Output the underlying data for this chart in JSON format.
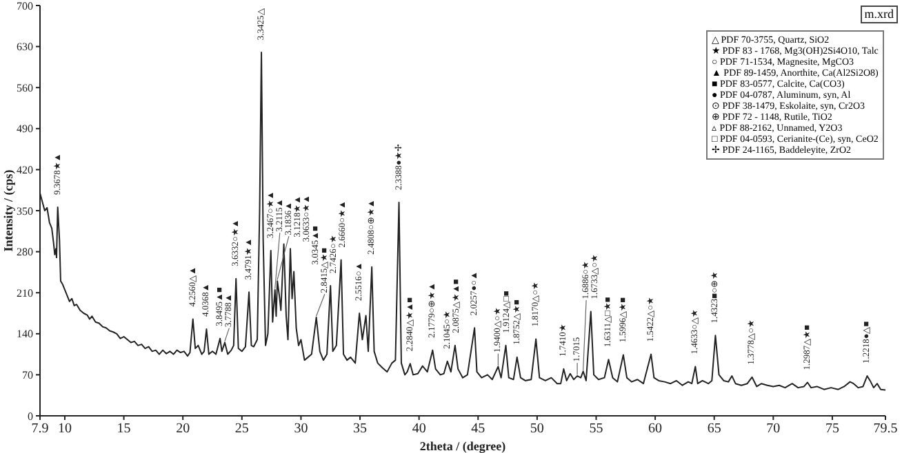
{
  "chart_data": {
    "type": "line",
    "xlabel": "2theta / (degree)",
    "ylabel": "Intensity / (cps)",
    "xlim": [
      7.9,
      79.5
    ],
    "ylim": [
      0,
      700
    ],
    "xticks": [
      7.9,
      10,
      15,
      20,
      25,
      30,
      35,
      40,
      45,
      50,
      55,
      60,
      65,
      70,
      75,
      79.5
    ],
    "yticks": [
      0,
      70,
      140,
      210,
      280,
      350,
      420,
      490,
      560,
      630,
      700
    ],
    "series": [
      {
        "color": "#222222",
        "x": [
          7.9,
          8.1,
          8.3,
          8.5,
          8.7,
          8.9,
          9.05,
          9.15,
          9.25,
          9.3,
          9.4,
          9.55,
          9.65,
          9.8,
          10.0,
          10.2,
          10.4,
          10.6,
          10.8,
          11.0,
          11.3,
          11.6,
          11.9,
          12.1,
          12.3,
          12.6,
          12.9,
          13.2,
          13.5,
          13.8,
          14.1,
          14.4,
          14.7,
          15.0,
          15.3,
          15.6,
          15.9,
          16.2,
          16.5,
          16.8,
          17.1,
          17.4,
          17.7,
          18.0,
          18.3,
          18.6,
          18.9,
          19.2,
          19.5,
          19.8,
          20.1,
          20.4,
          20.6,
          20.85,
          21.05,
          21.3,
          21.6,
          21.8,
          22.0,
          22.2,
          22.5,
          22.8,
          23.15,
          23.3,
          23.55,
          23.8,
          24.1,
          24.3,
          24.5,
          24.7,
          25.0,
          25.3,
          25.6,
          25.8,
          26.0,
          26.3,
          26.5,
          26.65,
          26.8,
          27.0,
          27.2,
          27.45,
          27.6,
          27.8,
          27.9,
          28.0,
          28.2,
          28.3,
          28.55,
          28.75,
          28.9,
          29.1,
          29.25,
          29.4,
          29.6,
          29.8,
          30.0,
          30.3,
          30.6,
          30.9,
          31.3,
          31.6,
          31.9,
          32.2,
          32.5,
          32.7,
          33.0,
          33.4,
          33.6,
          33.9,
          34.2,
          34.6,
          34.95,
          35.2,
          35.5,
          35.7,
          36.0,
          36.2,
          36.5,
          36.9,
          37.3,
          37.7,
          38.0,
          38.3,
          38.5,
          38.8,
          39.0,
          39.25,
          39.5,
          39.9,
          40.3,
          40.7,
          41.15,
          41.4,
          41.8,
          42.1,
          42.4,
          42.7,
          43.05,
          43.3,
          43.7,
          44.1,
          44.7,
          44.9,
          45.3,
          45.8,
          46.2,
          46.7,
          46.95,
          47.35,
          47.6,
          48.0,
          48.3,
          48.6,
          49.0,
          49.5,
          49.9,
          50.2,
          50.7,
          51.2,
          51.7,
          52.0,
          52.25,
          52.5,
          52.8,
          53.1,
          53.4,
          53.7,
          53.9,
          54.15,
          54.55,
          54.8,
          55.2,
          55.7,
          56.05,
          56.4,
          56.8,
          57.3,
          57.6,
          58.0,
          58.5,
          59.0,
          59.65,
          59.9,
          60.3,
          60.8,
          61.3,
          61.8,
          62.3,
          62.8,
          63.1,
          63.4,
          63.6,
          64.0,
          64.5,
          64.8,
          65.1,
          65.4,
          65.8,
          66.2,
          66.5,
          66.8,
          67.3,
          67.8,
          68.2,
          68.6,
          69.0,
          69.5,
          70.0,
          70.5,
          71.0,
          71.6,
          72.1,
          72.6,
          72.9,
          73.2,
          73.7,
          74.3,
          74.9,
          75.5,
          76.0,
          76.5,
          76.8,
          77.2,
          77.6,
          77.95,
          78.2,
          78.5,
          78.8,
          79.1,
          79.5
        ],
        "values": [
          380,
          365,
          350,
          355,
          330,
          320,
          295,
          275,
          285,
          270,
          356,
          300,
          230,
          225,
          215,
          205,
          195,
          200,
          188,
          190,
          180,
          175,
          172,
          165,
          170,
          160,
          158,
          152,
          150,
          145,
          143,
          140,
          132,
          135,
          130,
          125,
          127,
          120,
          122,
          115,
          118,
          110,
          112,
          105,
          112,
          106,
          110,
          105,
          112,
          108,
          110,
          102,
          108,
          165,
          115,
          120,
          105,
          110,
          148,
          105,
          110,
          105,
          132,
          110,
          125,
          105,
          112,
          120,
          234,
          115,
          110,
          118,
          211,
          120,
          118,
          130,
          350,
          620,
          300,
          120,
          140,
          282,
          160,
          215,
          170,
          230,
          200,
          180,
          293,
          170,
          130,
          285,
          200,
          246,
          150,
          120,
          130,
          95,
          100,
          105,
          168,
          110,
          95,
          105,
          222,
          110,
          120,
          266,
          105,
          95,
          100,
          90,
          175,
          130,
          171,
          110,
          254,
          110,
          90,
          82,
          75,
          90,
          95,
          364,
          90,
          70,
          75,
          89,
          70,
          72,
          85,
          75,
          112,
          80,
          70,
          72,
          93,
          75,
          120,
          80,
          65,
          70,
          150,
          75,
          65,
          70,
          62,
          84,
          65,
          120,
          65,
          62,
          100,
          65,
          60,
          62,
          131,
          65,
          60,
          65,
          55,
          55,
          80,
          60,
          72,
          62,
          68,
          65,
          76,
          60,
          178,
          70,
          62,
          65,
          96,
          65,
          58,
          104,
          65,
          58,
          62,
          55,
          105,
          65,
          60,
          58,
          55,
          60,
          52,
          58,
          55,
          84,
          55,
          60,
          55,
          60,
          137,
          70,
          60,
          58,
          68,
          55,
          52,
          55,
          66,
          50,
          55,
          52,
          50,
          52,
          48,
          55,
          48,
          50,
          57,
          48,
          50,
          45,
          48,
          45,
          50,
          58,
          55,
          48,
          50,
          68,
          60,
          48,
          55,
          45,
          44
        ]
      }
    ],
    "annotations": [
      "m.xrd",
      "△ PDF 70-3755, Quartz, SiO2",
      "★ PDF 83 - 1768, Mg3(OH)2Si4O10, Talc",
      "○ PDF 71-1534, Magnesite, MgCO3",
      "▲ PDF 89-1459, Anorthite, Ca(Al2Si2O8)",
      "■ PDF 83-0577, Calcite, Ca(CO3)",
      "● PDF 04-0787, Aluminum, syn, Al",
      "⊙ PDF 38-1479, Eskolaite, syn, Cr2O3",
      "⊕ PDF 72 - 1148, Rutile, TiO2",
      "▵ PDF 88-2162, Unnamed, Y2O3",
      "□ PDF 04-0593, Cerianite-(Ce), syn, CeO2",
      "✢ PDF 24-1165, Baddeleyite, ZrO2",
      {
        "text": "9.3678★▲",
        "x": 9.4,
        "y": 356
      },
      {
        "text": "4.2560△▲",
        "x": 20.85,
        "y": 165
      },
      {
        "text": "4.0368▲",
        "x": 22.0,
        "y": 148
      },
      {
        "text": "3.8495▲■",
        "x": 23.15,
        "y": 132
      },
      {
        "text": "3.7788▲",
        "x": 23.55,
        "y": 125
      },
      {
        "text": "3.6332○★▲",
        "x": 24.5,
        "y": 234
      },
      {
        "text": "3.4791★▲",
        "x": 25.6,
        "y": 211
      },
      {
        "text": "3.3425△",
        "x": 26.65,
        "y": 620
      },
      {
        "text": "3.2467○★▲",
        "x": 27.45,
        "y": 282
      },
      {
        "text": "3.2115▲",
        "x": 27.8,
        "y": 215
      },
      {
        "text": "3.1836▲",
        "x": 28.0,
        "y": 230
      },
      {
        "text": "3.1218★▲",
        "x": 28.55,
        "y": 293
      },
      {
        "text": "3.0633○★▲",
        "x": 29.1,
        "y": 285
      },
      {
        "text": "3.0345▲■",
        "x": 29.4,
        "y": 246
      },
      {
        "text": "2.8415△★■",
        "x": 31.3,
        "y": 168
      },
      {
        "text": "2.7426○★",
        "x": 32.5,
        "y": 222
      },
      {
        "text": "2.6660○★▲",
        "x": 33.4,
        "y": 266
      },
      {
        "text": "2.5516○▲",
        "x": 34.95,
        "y": 175
      },
      {
        "text": "2.4808○⊕★▲",
        "x": 36.0,
        "y": 254
      },
      {
        "text": "2.3388●★✢",
        "x": 38.3,
        "y": 364
      },
      {
        "text": "2.2840△★▲■",
        "x": 39.25,
        "y": 89
      },
      {
        "text": "2.1779○⊕★▲",
        "x": 41.15,
        "y": 112
      },
      {
        "text": "2.1045○★",
        "x": 42.4,
        "y": 93
      },
      {
        "text": "2.0875△★▲■",
        "x": 43.05,
        "y": 120
      },
      {
        "text": "2.0257●○▲",
        "x": 44.7,
        "y": 150
      },
      {
        "text": "1.9400△○★",
        "x": 46.7,
        "y": 84
      },
      {
        "text": "1.9124△□■",
        "x": 47.35,
        "y": 120
      },
      {
        "text": "1.8752△★■",
        "x": 48.3,
        "y": 100
      },
      {
        "text": "1.8170△○★",
        "x": 49.9,
        "y": 131
      },
      {
        "text": "1.7410★",
        "x": 52.25,
        "y": 80
      },
      {
        "text": "1.7015",
        "x": 53.4,
        "y": 68
      },
      {
        "text": "1.6886○★",
        "x": 53.9,
        "y": 76
      },
      {
        "text": "1.6733△○★",
        "x": 54.55,
        "y": 178
      },
      {
        "text": "1.6311△□★■",
        "x": 56.05,
        "y": 96
      },
      {
        "text": "1.5996△★■",
        "x": 57.3,
        "y": 104
      },
      {
        "text": "1.5422△○★",
        "x": 59.65,
        "y": 105
      },
      {
        "text": "1.4633○△★",
        "x": 63.4,
        "y": 84
      },
      {
        "text": "1.4323■○⊕★",
        "x": 65.1,
        "y": 137
      },
      {
        "text": "1.3778△○★",
        "x": 68.2,
        "y": 66
      },
      {
        "text": "1.2987△★■",
        "x": 72.9,
        "y": 57
      },
      {
        "text": "1.2218●△■",
        "x": 77.95,
        "y": 68
      }
    ]
  }
}
